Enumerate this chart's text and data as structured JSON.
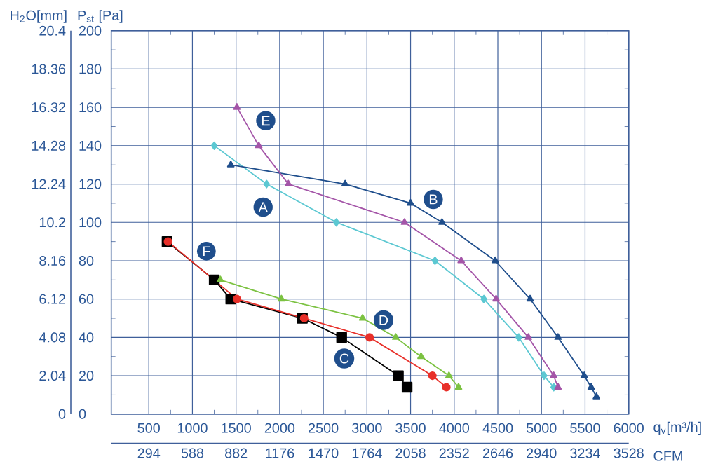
{
  "chart_data": {
    "type": "line",
    "xlabel": "q$_{v}$[m³/h]",
    "ylabel": "P$_{st}$ [Pa]",
    "y2label": "H$_{2}$O[mm]",
    "x2label": "CFM",
    "xlim": [
      70,
      6000
    ],
    "xticks": [
      500,
      1000,
      1500,
      2000,
      2500,
      3000,
      3500,
      4000,
      4500,
      5000,
      5500,
      6000
    ],
    "x2lim": [
      41,
      3528
    ],
    "x2ticks": [
      294,
      588,
      882,
      1176,
      1470,
      1764,
      2058,
      2352,
      2646,
      2940,
      3234,
      3528
    ],
    "ylim": [
      0,
      200
    ],
    "yticks": [
      0,
      20,
      40,
      60,
      80,
      100,
      120,
      140,
      160,
      180,
      200
    ],
    "y2lim": [
      0,
      20.4
    ],
    "y2ticks": [
      0,
      2.04,
      4.08,
      6.12,
      8.16,
      10.2,
      12.24,
      14.28,
      16.32,
      18.36,
      20.4
    ],
    "grid": true,
    "series": [
      {
        "color": "#5cc8d2",
        "marker": "diamond",
        "x": [
          1250,
          1850,
          2650,
          3780,
          4340,
          4740,
          5030,
          5140
        ],
        "values": [
          140,
          120,
          100,
          80,
          60,
          40,
          20,
          14
        ]
      },
      {
        "color": "#1f4e8c",
        "marker": "triangle",
        "x": [
          1440,
          2750,
          3500,
          3860,
          4470,
          4870,
          5190,
          5490,
          5570,
          5630
        ],
        "values": [
          130,
          120,
          110,
          100,
          80,
          60,
          40,
          20,
          14,
          9
        ]
      },
      {
        "color": "#000000",
        "marker": "square",
        "x": [
          710,
          1250,
          1440,
          2260,
          2710,
          3360,
          3460
        ],
        "values": [
          90,
          70,
          60,
          50,
          40,
          20,
          14
        ]
      },
      {
        "color": "#7cc242",
        "marker": "triangle",
        "x": [
          1320,
          2020,
          2950,
          3330,
          3620,
          3940,
          4050
        ],
        "values": [
          70,
          60,
          50,
          40,
          30,
          20,
          14
        ]
      },
      {
        "color": "#a455a8",
        "marker": "triangle",
        "x": [
          1510,
          1760,
          2100,
          3430,
          4080,
          4480,
          4850,
          5140,
          5190
        ],
        "values": [
          160,
          140,
          120,
          100,
          80,
          60,
          40,
          20,
          14
        ]
      },
      {
        "color": "#e8302a",
        "marker": "circle",
        "x": [
          720,
          1510,
          2280,
          3030,
          3750,
          3910
        ],
        "values": [
          90,
          60,
          50,
          40,
          20,
          14
        ]
      }
    ],
    "annotations": [
      {
        "text": "A",
        "x": 1810,
        "y": 108
      },
      {
        "text": "B",
        "x": 3760,
        "y": 112
      },
      {
        "text": "C",
        "x": 2740,
        "y": 29
      },
      {
        "text": "D",
        "x": 3190,
        "y": 49
      },
      {
        "text": "E",
        "x": 1840,
        "y": 153
      },
      {
        "text": "F",
        "x": 1160,
        "y": 85
      }
    ]
  }
}
